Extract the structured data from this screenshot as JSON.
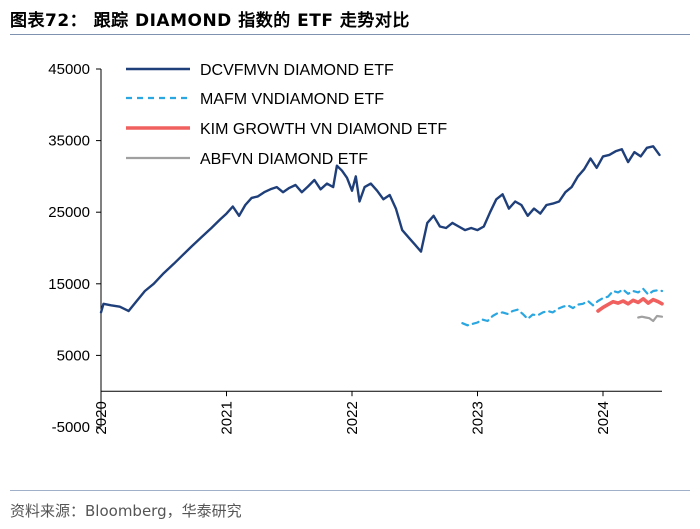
{
  "figure": {
    "title": "图表72：  跟踪 DIAMOND 指数的 ETF 走势对比",
    "source": "资料来源：Bloomberg，华泰研究"
  },
  "chart_data": {
    "type": "line",
    "title": "跟踪 DIAMOND 指数的 ETF 走势对比",
    "xlabel": "",
    "ylabel": "",
    "xlim": [
      2020.0,
      2024.47
    ],
    "ylim": [
      -5000,
      45000
    ],
    "y_ticks": [
      -5000,
      5000,
      15000,
      25000,
      35000,
      45000
    ],
    "y_tick_labels": [
      "-5000",
      "5000",
      "15000",
      "25000",
      "35000",
      "45000"
    ],
    "x_ticks": [
      2020,
      2021,
      2022,
      2023,
      2024
    ],
    "x_tick_labels": [
      "2020",
      "2021",
      "2022",
      "2023",
      "2024"
    ],
    "grid": false,
    "legend_position": "top-left",
    "series": [
      {
        "name": "DCVFMVN DIAMOND ETF",
        "color": "#1f3f7a",
        "style": "solid",
        "x": [
          2020.0,
          2020.02,
          2020.08,
          2020.15,
          2020.22,
          2020.28,
          2020.35,
          2020.42,
          2020.5,
          2020.58,
          2020.65,
          2020.72,
          2020.8,
          2020.88,
          2020.95,
          2021.0,
          2021.05,
          2021.1,
          2021.15,
          2021.2,
          2021.25,
          2021.3,
          2021.35,
          2021.4,
          2021.45,
          2021.5,
          2021.55,
          2021.6,
          2021.65,
          2021.7,
          2021.75,
          2021.8,
          2021.85,
          2021.88,
          2021.92,
          2021.96,
          2022.0,
          2022.03,
          2022.06,
          2022.1,
          2022.15,
          2022.2,
          2022.25,
          2022.3,
          2022.35,
          2022.4,
          2022.45,
          2022.5,
          2022.55,
          2022.6,
          2022.65,
          2022.7,
          2022.75,
          2022.8,
          2022.85,
          2022.9,
          2022.95,
          2023.0,
          2023.05,
          2023.1,
          2023.15,
          2023.2,
          2023.25,
          2023.3,
          2023.35,
          2023.4,
          2023.45,
          2023.5,
          2023.55,
          2023.6,
          2023.65,
          2023.7,
          2023.75,
          2023.8,
          2023.85,
          2023.9,
          2023.95,
          2024.0,
          2024.05,
          2024.1,
          2024.15,
          2024.2,
          2024.25,
          2024.3,
          2024.35,
          2024.4,
          2024.45
        ],
        "values": [
          11000,
          12200,
          12000,
          11800,
          11200,
          12500,
          14000,
          15000,
          16500,
          17800,
          19000,
          20200,
          21500,
          22800,
          24000,
          24800,
          25800,
          24500,
          26000,
          27000,
          27200,
          27800,
          28200,
          28500,
          27800,
          28400,
          28800,
          27800,
          28600,
          29500,
          28200,
          29000,
          28500,
          31500,
          30800,
          29800,
          28000,
          30000,
          26500,
          28500,
          29000,
          28000,
          26800,
          27400,
          25500,
          22500,
          21500,
          20500,
          19500,
          23500,
          24500,
          23000,
          22800,
          23500,
          23000,
          22500,
          22800,
          22500,
          23000,
          25000,
          26800,
          27500,
          25500,
          26500,
          26000,
          24500,
          25500,
          24800,
          26000,
          26200,
          26500,
          27800,
          28500,
          30000,
          31000,
          32500,
          31200,
          32800,
          33000,
          33500,
          33800,
          32000,
          33400,
          32800,
          34000,
          34200,
          33000
        ]
      },
      {
        "name": "MAFM VNDIAMOND ETF",
        "color": "#2aa6e0",
        "style": "dashed",
        "x": [
          2022.88,
          2022.92,
          2022.96,
          2023.0,
          2023.04,
          2023.08,
          2023.12,
          2023.16,
          2023.2,
          2023.24,
          2023.28,
          2023.32,
          2023.36,
          2023.4,
          2023.44,
          2023.48,
          2023.52,
          2023.56,
          2023.6,
          2023.64,
          2023.68,
          2023.72,
          2023.76,
          2023.8,
          2023.84,
          2023.88,
          2023.92,
          2023.96,
          2024.0,
          2024.04,
          2024.08,
          2024.12,
          2024.16,
          2024.2,
          2024.24,
          2024.28,
          2024.32,
          2024.36,
          2024.4,
          2024.44,
          2024.47
        ],
        "values": [
          9500,
          9200,
          9400,
          9600,
          10000,
          9800,
          10500,
          10900,
          11000,
          10800,
          11200,
          11400,
          10800,
          10100,
          10700,
          10600,
          11000,
          11200,
          11000,
          11500,
          11800,
          12000,
          11600,
          12100,
          12200,
          12600,
          12000,
          12600,
          13000,
          13200,
          14000,
          13800,
          14200,
          13600,
          14000,
          13800,
          14300,
          13500,
          14000,
          14100,
          14000
        ]
      },
      {
        "name": "KIM GROWTH VN DIAMOND ETF",
        "color": "#f0605e",
        "style": "solid",
        "x": [
          2023.96,
          2024.0,
          2024.04,
          2024.08,
          2024.12,
          2024.16,
          2024.2,
          2024.24,
          2024.28,
          2024.32,
          2024.36,
          2024.4,
          2024.44,
          2024.47
        ],
        "values": [
          11200,
          11700,
          12100,
          12500,
          12300,
          12600,
          12200,
          12700,
          12400,
          12900,
          12300,
          12800,
          12500,
          12200
        ]
      },
      {
        "name": "ABFVN DIAMOND ETF",
        "color": "#a0a0a0",
        "style": "solid",
        "x": [
          2024.28,
          2024.31,
          2024.34,
          2024.37,
          2024.4,
          2024.43,
          2024.47
        ],
        "values": [
          10300,
          10400,
          10300,
          10200,
          9800,
          10500,
          10400
        ]
      }
    ]
  }
}
